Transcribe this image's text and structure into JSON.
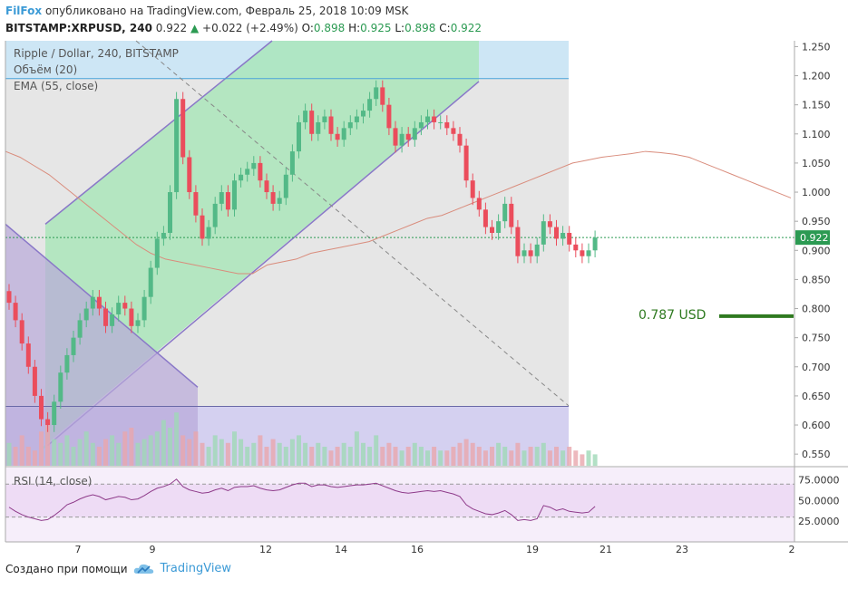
{
  "header": {
    "brand": "FilFox",
    "published": "опубликовано на TradingView.com, Февраль 25, 2018 10:09 MSK",
    "symbol": "BITSTAMP:XRPUSD, 240",
    "last": "0.922",
    "change_arrow": "▲",
    "change": "+0.022 (+2.49%)",
    "o_label": "O:",
    "o_value": "0.898",
    "h_label": "H:",
    "h_value": "0.925",
    "l_label": "L:",
    "l_value": "0.898",
    "c_label": "C:",
    "c_value": "0.922"
  },
  "legend": {
    "title": "Ripple / Dollar, 240, BITSTAMP",
    "volume": "Объём (20)",
    "ema": "EMA (55, close)",
    "rsi": "RSI (14, close)"
  },
  "annotation": {
    "target_label": "0.787 USD",
    "target_value": 0.787
  },
  "footer": {
    "created": "Создано при помощи",
    "brand": "TradingView",
    "logo_icon": "tradingview-cloud-icon"
  },
  "colors": {
    "up": "#53b987",
    "down": "#eb4d5c",
    "ema": "#d98c7c",
    "rsi": "#8e3b8a",
    "target": "#2f7a20",
    "accent": "#3b9ad6"
  },
  "chart_data": {
    "type": "candlestick",
    "price_axis": {
      "min": 0.53,
      "max": 1.26,
      "ticks": [
        "1.250",
        "1.200",
        "1.150",
        "1.100",
        "1.050",
        "1.000",
        "0.950",
        "0.900",
        "0.850",
        "0.800",
        "0.750",
        "0.700",
        "0.650",
        "0.600",
        "0.550"
      ]
    },
    "rsi_axis": {
      "ticks": [
        "75.0000",
        "50.0000",
        "25.0000"
      ],
      "levels": [
        70,
        30
      ]
    },
    "x_ticks": [
      "7",
      "9",
      "12",
      "14",
      "16",
      "19",
      "21",
      "23",
      "2"
    ],
    "last_price_label": "0.922",
    "closes": [
      0.81,
      0.78,
      0.74,
      0.7,
      0.65,
      0.61,
      0.6,
      0.64,
      0.69,
      0.72,
      0.75,
      0.78,
      0.8,
      0.82,
      0.8,
      0.77,
      0.79,
      0.81,
      0.8,
      0.77,
      0.78,
      0.82,
      0.87,
      0.92,
      0.93,
      1.0,
      1.16,
      1.06,
      1.0,
      0.96,
      0.92,
      0.94,
      0.98,
      1.0,
      0.97,
      1.02,
      1.03,
      1.04,
      1.05,
      1.02,
      1.0,
      0.98,
      0.99,
      1.03,
      1.07,
      1.12,
      1.14,
      1.1,
      1.12,
      1.13,
      1.1,
      1.09,
      1.11,
      1.12,
      1.13,
      1.14,
      1.16,
      1.18,
      1.15,
      1.11,
      1.08,
      1.1,
      1.09,
      1.11,
      1.12,
      1.13,
      1.12,
      1.12,
      1.11,
      1.1,
      1.08,
      1.02,
      0.99,
      0.97,
      0.94,
      0.93,
      0.95,
      0.98,
      0.94,
      0.89,
      0.9,
      0.89,
      0.91,
      0.95,
      0.94,
      0.92,
      0.93,
      0.91,
      0.9,
      0.89,
      0.9,
      0.922
    ],
    "ema": [
      1.07,
      1.06,
      1.045,
      1.03,
      1.01,
      0.99,
      0.97,
      0.95,
      0.93,
      0.91,
      0.895,
      0.885,
      0.88,
      0.875,
      0.87,
      0.865,
      0.86,
      0.86,
      0.875,
      0.88,
      0.885,
      0.895,
      0.9,
      0.905,
      0.91,
      0.915,
      0.925,
      0.935,
      0.945,
      0.955,
      0.96,
      0.97,
      0.98,
      0.99,
      1.0,
      1.01,
      1.02,
      1.03,
      1.04,
      1.05,
      1.055,
      1.06,
      1.063,
      1.066,
      1.07,
      1.068,
      1.065,
      1.06,
      1.05,
      1.04,
      1.03,
      1.02,
      1.01,
      1.0,
      0.99
    ],
    "rsi": [
      42,
      37,
      33,
      30,
      28,
      26,
      27,
      32,
      38,
      45,
      48,
      52,
      55,
      57,
      55,
      51,
      53,
      55,
      54,
      51,
      52,
      56,
      61,
      65,
      67,
      70,
      76,
      67,
      63,
      61,
      59,
      60,
      63,
      65,
      62,
      66,
      67,
      67,
      68,
      65,
      63,
      62,
      63,
      66,
      69,
      71,
      71,
      67,
      69,
      69,
      67,
      66,
      67,
      68,
      69,
      69,
      70,
      71,
      68,
      65,
      62,
      60,
      59,
      60,
      61,
      62,
      61,
      62,
      60,
      58,
      55,
      45,
      40,
      37,
      34,
      33,
      35,
      38,
      33,
      26,
      27,
      26,
      28,
      44,
      42,
      38,
      40,
      37,
      36,
      35,
      36,
      43
    ],
    "volume": [
      6,
      5,
      8,
      5,
      4,
      9,
      11,
      7,
      6,
      8,
      5,
      7,
      9,
      6,
      5,
      7,
      8,
      6,
      9,
      10,
      6,
      7,
      8,
      9,
      12,
      10,
      14,
      8,
      7,
      9,
      6,
      5,
      8,
      7,
      6,
      9,
      7,
      5,
      6,
      8,
      5,
      7,
      6,
      5,
      7,
      8,
      6,
      5,
      6,
      5,
      4,
      5,
      6,
      5,
      9,
      6,
      5,
      8,
      5,
      6,
      5,
      4,
      5,
      6,
      5,
      4,
      5,
      4,
      4,
      5,
      6,
      7,
      6,
      5,
      4,
      5,
      6,
      5,
      4,
      6,
      4,
      5,
      5,
      6,
      4,
      5,
      4,
      5,
      4,
      3,
      4,
      3
    ],
    "channel_up": [
      [
        0.56,
        0.5
      ],
      [
        0.95,
        1.19
      ]
    ],
    "horizontal_lines": [
      1.195,
      0.632
    ],
    "dashed_line": [
      [
        1.26,
        0.633
      ]
    ]
  }
}
